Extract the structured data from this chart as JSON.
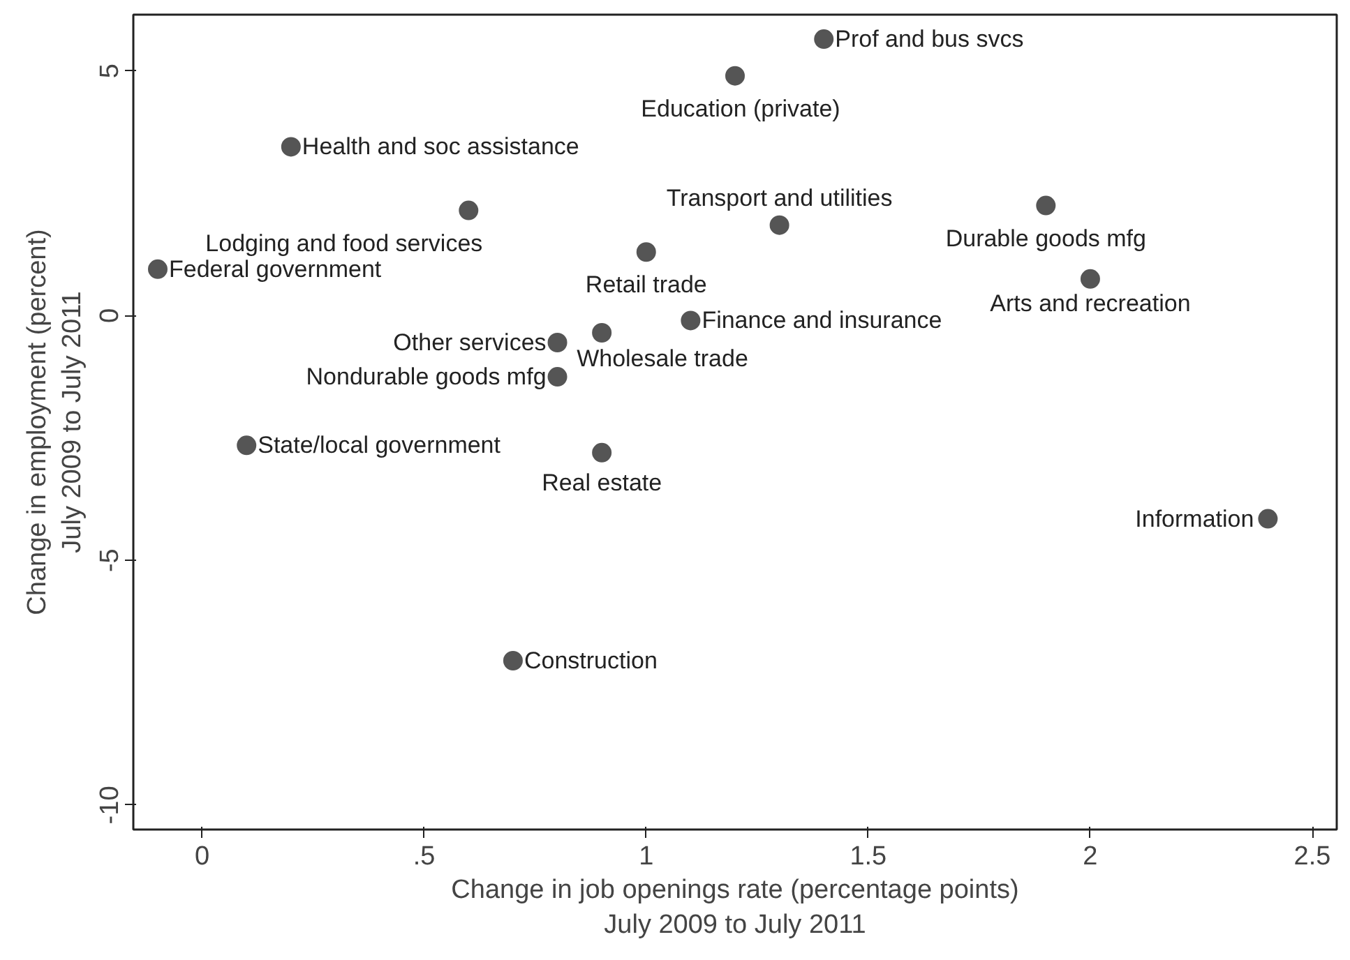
{
  "chart_data": {
    "type": "scatter",
    "xlabel": "Change in job openings rate (percentage points)\nJuly 2009 to July 2011",
    "ylabel": "Change in employment (percent)\nJuly 2009 to July 2011",
    "x": [
      1.4,
      1.2,
      0.2,
      0.6,
      1.3,
      1.9,
      -0.1,
      1.0,
      2.0,
      1.1,
      0.8,
      0.9,
      0.8,
      0.1,
      0.9,
      2.4,
      0.7
    ],
    "values": [
      5.65,
      4.9,
      3.45,
      2.15,
      1.85,
      2.25,
      0.95,
      1.3,
      0.75,
      -0.1,
      -0.55,
      -0.35,
      -1.25,
      -2.65,
      -2.8,
      -4.15,
      -7.05
    ],
    "color": "#555555",
    "marker": "circle",
    "grid": false,
    "legend": false,
    "xlim": [
      -0.155,
      2.555
    ],
    "ylim": [
      -10.5,
      6.15
    ],
    "xticks": [
      0,
      {
        "value": 0.5,
        "label": ".5"
      },
      1,
      1.5,
      2,
      2.5
    ],
    "yticks": [
      -10,
      -5,
      0,
      5
    ],
    "annotations": [
      {
        "text": "Prof and bus svcs",
        "x": 1.4,
        "y": 5.65
      },
      {
        "text": "Education (private)",
        "x": 1.2,
        "y": 4.9
      },
      {
        "text": "Health and soc assistance",
        "x": 0.2,
        "y": 3.45
      },
      {
        "text": "Lodging and food services",
        "x": 0.6,
        "y": 2.15
      },
      {
        "text": "Transport and utilities",
        "x": 1.3,
        "y": 1.85
      },
      {
        "text": "Durable goods mfg",
        "x": 1.9,
        "y": 2.25
      },
      {
        "text": "Federal government",
        "x": -0.1,
        "y": 0.95
      },
      {
        "text": "Retail trade",
        "x": 1.0,
        "y": 1.3
      },
      {
        "text": "Arts and recreation",
        "x": 2.0,
        "y": 0.75
      },
      {
        "text": "Finance and insurance",
        "x": 1.1,
        "y": -0.1
      },
      {
        "text": "Other services",
        "x": 0.8,
        "y": -0.55
      },
      {
        "text": "Wholesale trade",
        "x": 0.9,
        "y": -0.35
      },
      {
        "text": "Nondurable goods mfg",
        "x": 0.8,
        "y": -1.25
      },
      {
        "text": "State/local government",
        "x": 0.1,
        "y": -2.65
      },
      {
        "text": "Real estate",
        "x": 0.9,
        "y": -2.8
      },
      {
        "text": "Information",
        "x": 2.4,
        "y": -4.15
      },
      {
        "text": "Construction",
        "x": 0.7,
        "y": -7.05
      }
    ]
  }
}
